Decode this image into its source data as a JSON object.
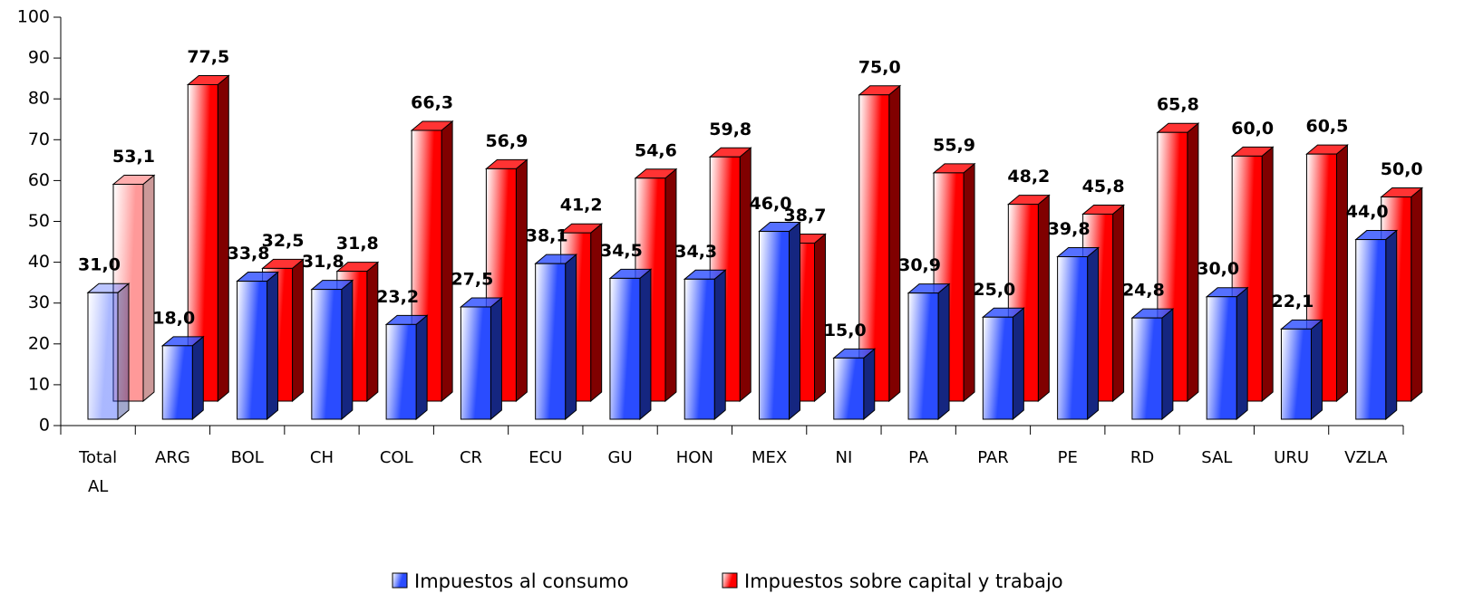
{
  "chart_data": {
    "type": "bar3d",
    "categories": [
      "Total AL",
      "ARG",
      "BOL",
      "CH",
      "COL",
      "CR",
      "ECU",
      "GU",
      "HON",
      "MEX",
      "NI",
      "PA",
      "PAR",
      "PE",
      "RD",
      "SAL",
      "URU",
      "VZLA"
    ],
    "series": [
      {
        "name": "Impuestos al consumo",
        "color": "#2a4cff",
        "values": [
          31.0,
          18.0,
          33.8,
          31.8,
          23.2,
          27.5,
          38.1,
          34.5,
          34.3,
          46.0,
          15.0,
          30.9,
          25.0,
          39.8,
          24.8,
          30.0,
          22.1,
          44.0
        ],
        "value_labels": [
          "31,0",
          "18,0",
          "33,8",
          "31,8",
          "23,2",
          "27,5",
          "38,1",
          "34,5",
          "34,3",
          "46,0",
          "15,0",
          "30,9",
          "25,0",
          "39,8",
          "24,8",
          "30,0",
          "22,1",
          "44,0"
        ]
      },
      {
        "name": "Impuestos sobre capital y trabajo",
        "color": "#ff0000",
        "values": [
          53.1,
          77.5,
          32.5,
          31.8,
          66.3,
          56.9,
          41.2,
          54.6,
          59.8,
          38.7,
          75.0,
          55.9,
          48.2,
          45.8,
          65.8,
          60.0,
          60.5,
          50.0
        ],
        "value_labels": [
          "53,1",
          "77,5",
          "32,5",
          "31,8",
          "66,3",
          "56,9",
          "41,2",
          "54,6",
          "59,8",
          "38,7",
          "75,0",
          "55,9",
          "48,2",
          "45,8",
          "65,8",
          "60,0",
          "60,5",
          "50,0"
        ]
      }
    ],
    "ylim": [
      0,
      100
    ],
    "yticks": [
      0,
      10,
      20,
      30,
      40,
      50,
      60,
      70,
      80,
      90,
      100
    ],
    "legend": "bottom"
  }
}
